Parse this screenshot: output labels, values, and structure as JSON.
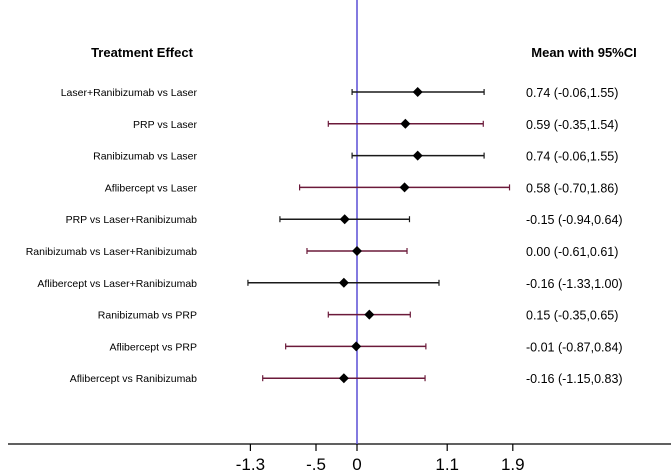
{
  "chart_data": {
    "type": "forest",
    "left_header": "Treatment Effect",
    "right_header": "Mean with 95%CI",
    "x_ticks": [
      -1.3,
      -0.5,
      0,
      1.1,
      1.9
    ],
    "x_tick_labels": [
      "-1.3",
      "-.5",
      "0",
      "1.1",
      "1.9"
    ],
    "reference_line": 0,
    "colors": {
      "reference": "#5a4fd6",
      "ci_dark": "#1a1a1a",
      "ci_maroon": "#6b1a3a",
      "marker": "#000000"
    },
    "rows": [
      {
        "label": "Laser+Ranibizumab vs Laser",
        "mean": 0.74,
        "lo": -0.06,
        "hi": 1.55,
        "ci_text": "0.74 (-0.06,1.55)",
        "ci_color": "dark"
      },
      {
        "label": "PRP vs Laser",
        "mean": 0.59,
        "lo": -0.35,
        "hi": 1.54,
        "ci_text": "0.59 (-0.35,1.54)",
        "ci_color": "maroon"
      },
      {
        "label": "Ranibizumab vs Laser",
        "mean": 0.74,
        "lo": -0.06,
        "hi": 1.55,
        "ci_text": "0.74 (-0.06,1.55)",
        "ci_color": "dark"
      },
      {
        "label": "Aflibercept vs Laser",
        "mean": 0.58,
        "lo": -0.7,
        "hi": 1.86,
        "ci_text": "0.58 (-0.70,1.86)",
        "ci_color": "maroon"
      },
      {
        "label": "PRP vs Laser+Ranibizumab",
        "mean": -0.15,
        "lo": -0.94,
        "hi": 0.64,
        "ci_text": "-0.15 (-0.94,0.64)",
        "ci_color": "dark"
      },
      {
        "label": "Ranibizumab vs Laser+Ranibizumab",
        "mean": 0.0,
        "lo": -0.61,
        "hi": 0.61,
        "ci_text": "0.00 (-0.61,0.61)",
        "ci_color": "maroon"
      },
      {
        "label": "Aflibercept vs Laser+Ranibizumab",
        "mean": -0.16,
        "lo": -1.33,
        "hi": 1.0,
        "ci_text": "-0.16 (-1.33,1.00)",
        "ci_color": "dark"
      },
      {
        "label": "Ranibizumab vs PRP",
        "mean": 0.15,
        "lo": -0.35,
        "hi": 0.65,
        "ci_text": "0.15 (-0.35,0.65)",
        "ci_color": "maroon"
      },
      {
        "label": "Aflibercept vs PRP",
        "mean": -0.01,
        "lo": -0.87,
        "hi": 0.84,
        "ci_text": "-0.01 (-0.87,0.84)",
        "ci_color": "maroon"
      },
      {
        "label": "Aflibercept vs Ranibizumab",
        "mean": -0.16,
        "lo": -1.15,
        "hi": 0.83,
        "ci_text": "-0.16 (-1.15,0.83)",
        "ci_color": "maroon"
      }
    ]
  }
}
